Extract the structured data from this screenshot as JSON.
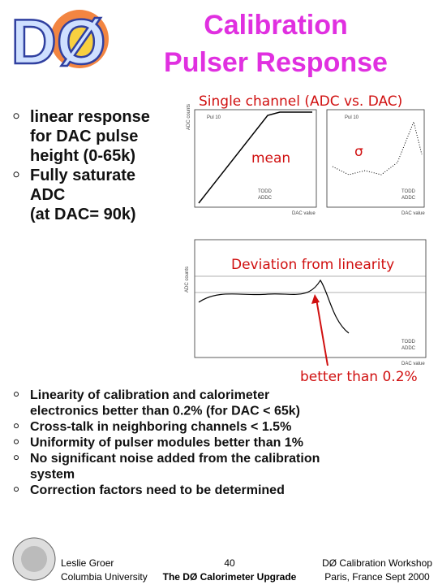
{
  "logo": {
    "text": "DØ"
  },
  "header": {
    "title_lines": [
      "Calibration",
      "Pulser Response"
    ]
  },
  "left_bullets": [
    {
      "lines": [
        "linear response",
        "for DAC pulse",
        "height (0-65k)"
      ]
    },
    {
      "lines": [
        "Fully saturate",
        "ADC",
        "(at DAC= 90k)"
      ]
    }
  ],
  "plots": {
    "caption": "Single channel (ADC vs. DAC)",
    "mean_label": "mean",
    "sigma_label": "σ",
    "deviation_label": "Deviation from linearity",
    "precision_label": "better than 0.2%",
    "axis_y": "ADC counts",
    "axis_x": "DAC value",
    "legend": "Pul 10",
    "tag_lines": [
      "TODD",
      "ADDC"
    ]
  },
  "bottom_bullets": [
    {
      "lines": [
        "Linearity of calibration and calorimeter",
        "electronics better than 0.2% (for DAC < 65k)"
      ]
    },
    {
      "lines": [
        "Cross-talk in neighboring channels < 1.5%"
      ]
    },
    {
      "lines": [
        "Uniformity of pulser modules better than 1%"
      ]
    },
    {
      "lines": [
        "No significant noise added from the calibration",
        "system"
      ]
    },
    {
      "lines": [
        "Correction factors need to be determined"
      ]
    }
  ],
  "footer": {
    "author": "Leslie Groer",
    "affiliation": "Columbia University",
    "page": "40",
    "talk": "The DØ Calorimeter Upgrade",
    "event": "DØ Calibration Workshop",
    "place": "Paris, France Sept 2000"
  }
}
